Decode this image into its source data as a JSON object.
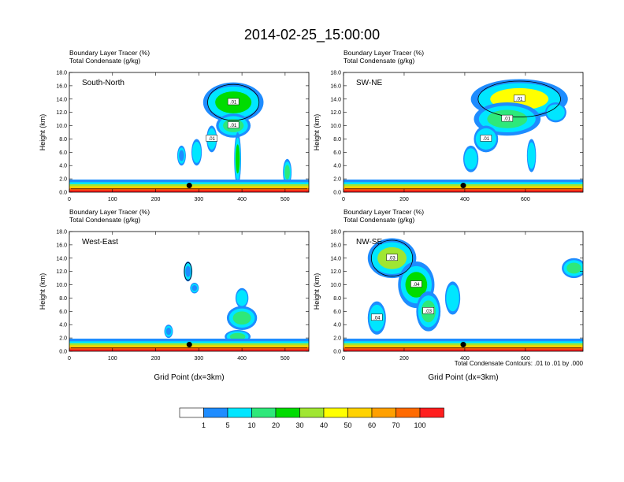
{
  "title": "2014-02-25_15:00:00",
  "colorbar": {
    "labels": [
      "1",
      "5",
      "10",
      "20",
      "30",
      "40",
      "50",
      "60",
      "70",
      "100"
    ],
    "colors": [
      "#ffffff",
      "#1e8cff",
      "#00e6ff",
      "#2ee87a",
      "#00dc00",
      "#a0e632",
      "#ffff00",
      "#ffd200",
      "#ffa000",
      "#ff6a00",
      "#ff1e1e"
    ]
  },
  "contour_note": "Total Condensate Contours: .01 to .01 by .000",
  "chart_data": [
    {
      "type": "heatmap",
      "panel_label": "South-North",
      "title_lines": [
        "Boundary Layer Tracer    (%)",
        "Total Condensate    (g/kg)"
      ],
      "ylabel": "Height (km)",
      "xlabel": "",
      "xlim": [
        0,
        555
      ],
      "ylim": [
        0,
        18
      ],
      "xticks": [
        "0",
        "100",
        "200",
        "300",
        "400",
        "500"
      ],
      "yticks": [
        "0.0",
        "2.0",
        "4.0",
        "6.0",
        "8.0",
        "10.0",
        "12.0",
        "14.0",
        "16.0",
        "18.0"
      ],
      "contour_labels": [
        ".01",
        ".01",
        ".01"
      ],
      "marker": {
        "x": 278,
        "y": 1.0
      },
      "tracer_cells": [
        {
          "x": 380,
          "y": 13.5,
          "rx": 70,
          "ry": 3.0,
          "level": 30
        },
        {
          "x": 380,
          "y": 10.0,
          "rx": 40,
          "ry": 1.8,
          "level": 20
        },
        {
          "x": 330,
          "y": 8.0,
          "rx": 12,
          "ry": 2.0,
          "level": 10
        },
        {
          "x": 295,
          "y": 6.0,
          "rx": 12,
          "ry": 2.0,
          "level": 10
        },
        {
          "x": 260,
          "y": 5.5,
          "rx": 10,
          "ry": 1.5,
          "level": 5
        },
        {
          "x": 390,
          "y": 5.0,
          "rx": 8,
          "ry": 4.0,
          "level": 30
        },
        {
          "x": 505,
          "y": 3.0,
          "rx": 10,
          "ry": 2.0,
          "level": 20
        }
      ]
    },
    {
      "type": "heatmap",
      "panel_label": "SW-NE",
      "title_lines": [
        "Boundary Layer Tracer    (%)",
        "Total Condensate    (g/kg)"
      ],
      "ylabel": "Height (km)",
      "xlabel": "",
      "xlim": [
        0,
        790
      ],
      "ylim": [
        0,
        18
      ],
      "xticks": [
        "0",
        "200",
        "400",
        "600"
      ],
      "yticks": [
        "0.0",
        "2.0",
        "4.0",
        "6.0",
        "8.0",
        "10.0",
        "12.0",
        "14.0",
        "16.0",
        "18.0"
      ],
      "contour_labels": [
        ".01",
        ".01",
        ".01"
      ],
      "marker": {
        "x": 395,
        "y": 1.0
      },
      "tracer_cells": [
        {
          "x": 580,
          "y": 14.0,
          "rx": 160,
          "ry": 3.0,
          "level": 50
        },
        {
          "x": 540,
          "y": 11.0,
          "rx": 110,
          "ry": 2.5,
          "level": 20
        },
        {
          "x": 470,
          "y": 8.0,
          "rx": 40,
          "ry": 2.0,
          "level": 10
        },
        {
          "x": 420,
          "y": 5.0,
          "rx": 25,
          "ry": 2.0,
          "level": 10
        },
        {
          "x": 620,
          "y": 5.5,
          "rx": 15,
          "ry": 2.5,
          "level": 10
        },
        {
          "x": 700,
          "y": 12.0,
          "rx": 35,
          "ry": 1.5,
          "level": 10
        }
      ]
    },
    {
      "type": "heatmap",
      "panel_label": "West-East",
      "title_lines": [
        "Boundary Layer Tracer    (%)",
        "Total Condensate    (g/kg)"
      ],
      "ylabel": "Height (km)",
      "xlabel": "Grid Point (dx=3km)",
      "xlim": [
        0,
        555
      ],
      "ylim": [
        0,
        18
      ],
      "xticks": [
        "0",
        "100",
        "200",
        "300",
        "400",
        "500"
      ],
      "yticks": [
        "0.0",
        "2.0",
        "4.0",
        "6.0",
        "8.0",
        "10.0",
        "12.0",
        "14.0",
        "16.0",
        "18.0"
      ],
      "contour_labels": [],
      "marker": {
        "x": 278,
        "y": 1.0
      },
      "tracer_cells": [
        {
          "x": 275,
          "y": 12.0,
          "rx": 10,
          "ry": 1.5,
          "level": 5
        },
        {
          "x": 290,
          "y": 9.5,
          "rx": 10,
          "ry": 0.8,
          "level": 5
        },
        {
          "x": 400,
          "y": 8.0,
          "rx": 15,
          "ry": 1.5,
          "level": 10
        },
        {
          "x": 400,
          "y": 5.0,
          "rx": 35,
          "ry": 1.8,
          "level": 20
        },
        {
          "x": 230,
          "y": 3.0,
          "rx": 10,
          "ry": 1.0,
          "level": 5
        },
        {
          "x": 390,
          "y": 2.2,
          "rx": 30,
          "ry": 1.0,
          "level": 20
        }
      ]
    },
    {
      "type": "heatmap",
      "panel_label": "NW-SE",
      "title_lines": [
        "Boundary Layer Tracer    (%)",
        "Total Condensate    (g/kg)"
      ],
      "ylabel": "Height (km)",
      "xlabel": "Grid Point (dx=3km)",
      "xlim": [
        0,
        790
      ],
      "ylim": [
        0,
        18
      ],
      "xticks": [
        "0",
        "200",
        "400",
        "600"
      ],
      "yticks": [
        "0.0",
        "2.0",
        "4.0",
        "6.0",
        "8.0",
        "10.0",
        "12.0",
        "14.0",
        "16.0",
        "18.0"
      ],
      "contour_labels": [
        ".03",
        ".04",
        ".03",
        ".04"
      ],
      "marker": {
        "x": 395,
        "y": 1.0
      },
      "tracer_cells": [
        {
          "x": 160,
          "y": 14.0,
          "rx": 80,
          "ry": 3.0,
          "level": 40
        },
        {
          "x": 240,
          "y": 10.0,
          "rx": 60,
          "ry": 3.5,
          "level": 30
        },
        {
          "x": 280,
          "y": 6.0,
          "rx": 40,
          "ry": 3.0,
          "level": 20
        },
        {
          "x": 110,
          "y": 5.0,
          "rx": 30,
          "ry": 2.5,
          "level": 10
        },
        {
          "x": 360,
          "y": 8.0,
          "rx": 25,
          "ry": 2.5,
          "level": 10
        },
        {
          "x": 760,
          "y": 12.5,
          "rx": 40,
          "ry": 1.5,
          "level": 20
        }
      ]
    }
  ]
}
